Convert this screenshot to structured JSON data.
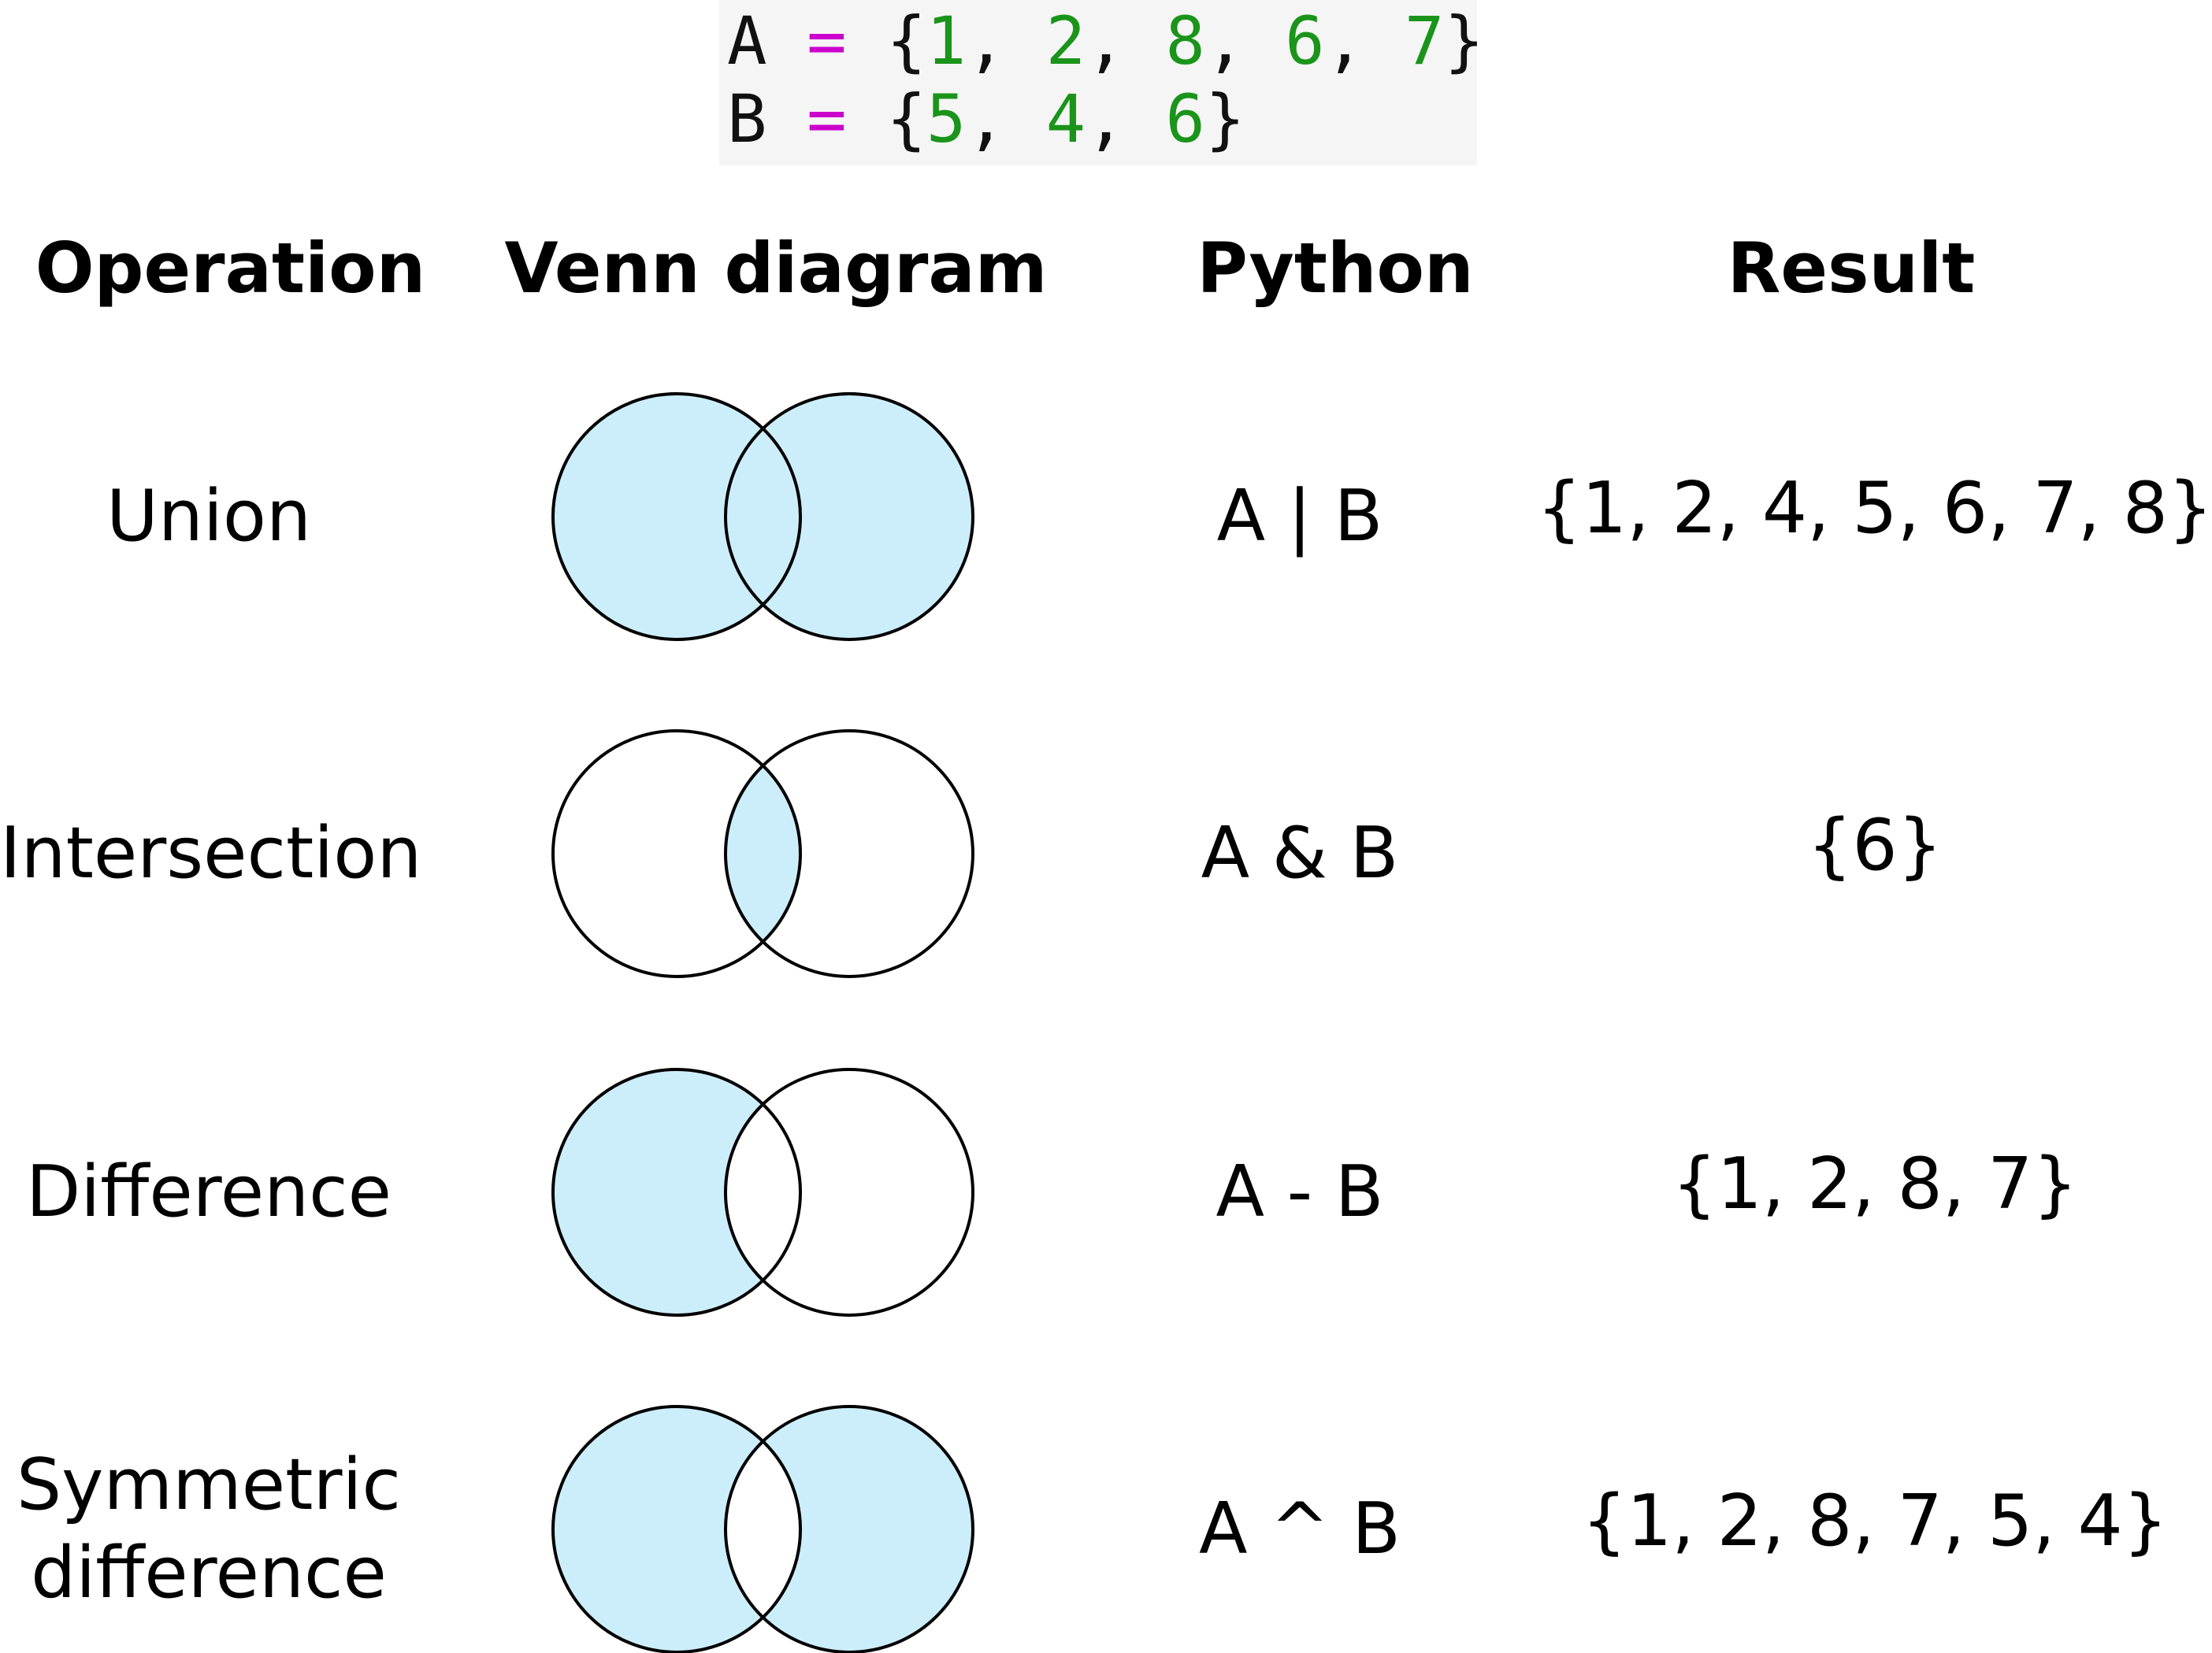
{
  "code": {
    "line_a": {
      "var": "A",
      "op": "=",
      "open": "{",
      "items": [
        "1",
        "2",
        "8",
        "6",
        "7"
      ],
      "close": "}"
    },
    "line_b": {
      "var": "B",
      "op": "=",
      "open": "{",
      "items": [
        "5",
        "4",
        "6"
      ],
      "close": "}"
    }
  },
  "headers": {
    "operation": "Operation",
    "venn": "Venn diagram",
    "python": "Python",
    "result": "Result"
  },
  "colors": {
    "fill": "#cceefb",
    "stroke": "#000000",
    "operator": "#cc00cc",
    "number": "#1a941a",
    "code_bg": "#f5f5f5"
  },
  "rows": [
    {
      "operation": "Union",
      "operation_lines": [
        "Union"
      ],
      "python": "A | B",
      "result": "{1, 2, 4, 5, 6, 7, 8}",
      "shaded_regions": [
        "a_only",
        "intersection",
        "b_only"
      ]
    },
    {
      "operation": "Intersection",
      "operation_lines": [
        "Intersection"
      ],
      "python": "A & B",
      "result": "{6}",
      "shaded_regions": [
        "intersection"
      ]
    },
    {
      "operation": "Difference",
      "operation_lines": [
        "Difference"
      ],
      "python": "A - B",
      "result": "{1, 2, 8, 7}",
      "shaded_regions": [
        "a_only"
      ]
    },
    {
      "operation": "Symmetric difference",
      "operation_lines": [
        "Symmetric",
        "difference"
      ],
      "python": "A ^ B",
      "result": "{1, 2, 8, 7, 5, 4}",
      "shaded_regions": [
        "a_only",
        "b_only"
      ]
    }
  ]
}
